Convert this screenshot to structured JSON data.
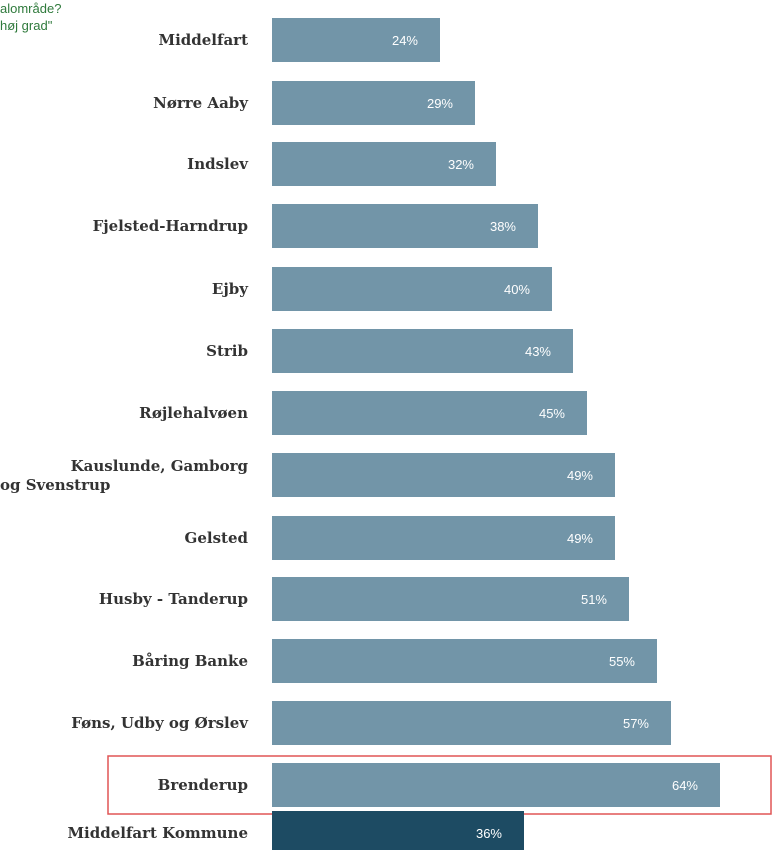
{
  "header": {
    "caption_line1": "alområde?",
    "caption_line2": "høj grad\""
  },
  "colors": {
    "bar": "#7295a8",
    "bar_total": "#1d4b63",
    "highlight_border": "#e05555",
    "caption_text": "#2f7a3c",
    "label_text": "#333333"
  },
  "chart_data": {
    "type": "bar",
    "orientation": "horizontal",
    "categories": [
      "Middelfart",
      "Nørre Aaby",
      "Indslev",
      "Fjelsted-Harndrup",
      "Ejby",
      "Strib",
      "Røjlehalvøen",
      "Kauslunde, Gamborg og Svenstrup",
      "Gelsted",
      "Husby - Tanderup",
      "Båring Banke",
      "Føns, Udby og Ørslev",
      "Brenderup",
      "Middelfart Kommune"
    ],
    "values": [
      24,
      29,
      32,
      38,
      40,
      43,
      45,
      49,
      49,
      51,
      55,
      57,
      64,
      36
    ],
    "value_labels": [
      "24%",
      "29%",
      "32%",
      "38%",
      "40%",
      "43%",
      "45%",
      "49%",
      "49%",
      "51%",
      "55%",
      "57%",
      "64%",
      "36%"
    ],
    "highlighted_category": "Brenderup",
    "total_category": "Middelfart Kommune",
    "xlim": [
      0,
      100
    ],
    "grid": false,
    "legend": "none"
  }
}
